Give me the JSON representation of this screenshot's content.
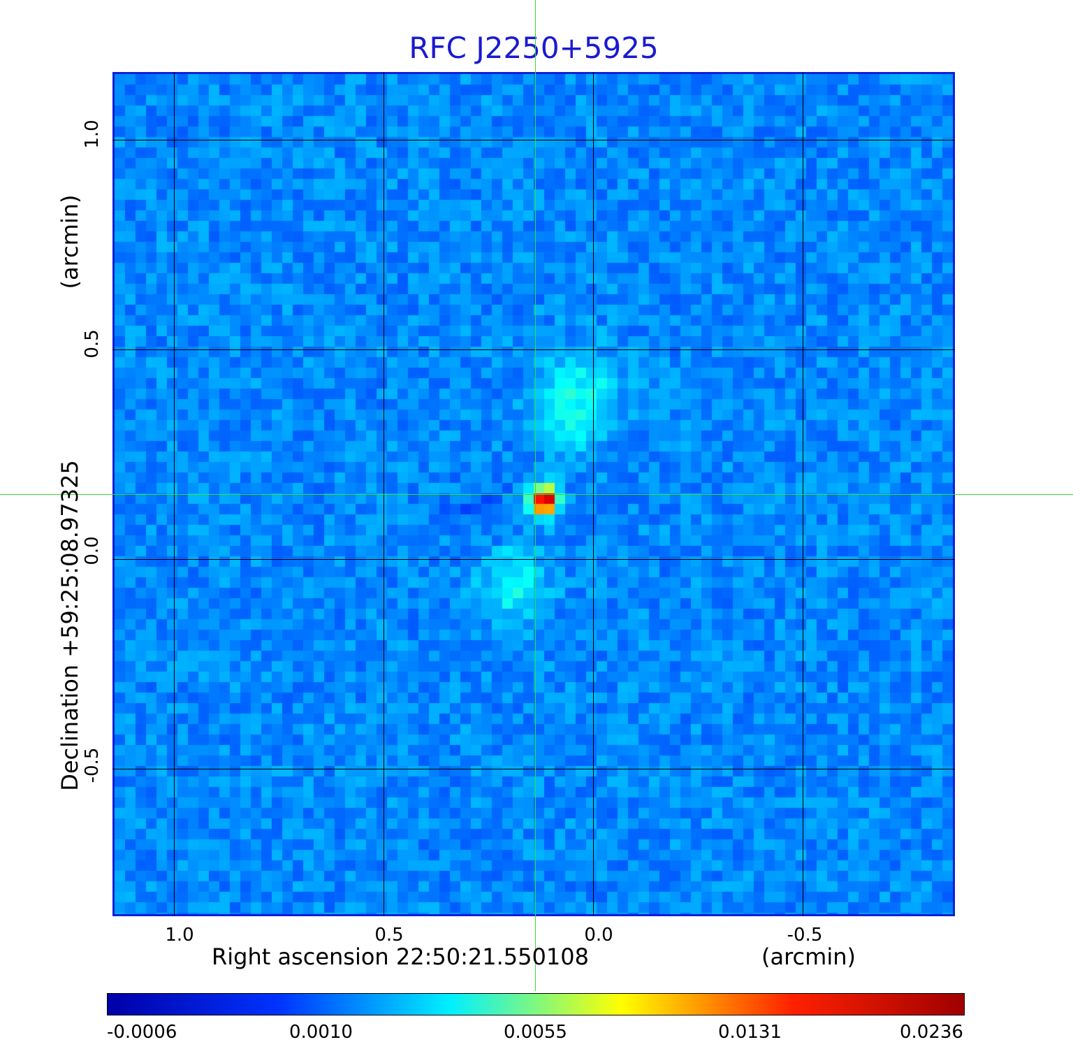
{
  "title": "RFC J2250+5925",
  "x_axis": {
    "label": "Right ascension  22:50:21.550108",
    "unit": "(arcmin)",
    "ticks": [
      "1.0",
      "0.5",
      "0.0",
      "-0.5"
    ]
  },
  "y_axis": {
    "label": "Declination  +59:25:08.97325",
    "unit": "(arcmin)",
    "ticks": [
      "1.0",
      "0.5",
      "0.0",
      "-0.5"
    ]
  },
  "colorbar": {
    "ticks": [
      "-0.0006",
      "0.0010",
      "0.0055",
      "0.0131",
      "0.0236"
    ],
    "colors": [
      "#0000a8",
      "#0033ff",
      "#00f0ff",
      "#ffff00",
      "#ff2000",
      "#a00000"
    ]
  },
  "image": {
    "background_color": "#1a50f0",
    "peak_color": "#b00000",
    "frame_color": "#0f1fd6",
    "crosshair_color": "#33e033"
  }
}
